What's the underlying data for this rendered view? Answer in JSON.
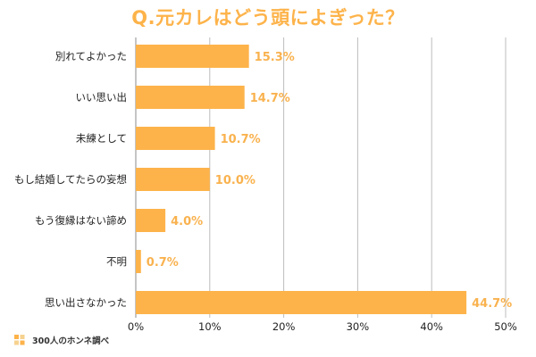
{
  "title": "Q.元カレはどう頭によぎった？",
  "source": {
    "text": "300人のホンネ調べ",
    "icon": "brand-logo-icon"
  },
  "colors": {
    "accent": "#FDB34A",
    "bar": "#FDB34A",
    "value_label": "#F9B24E",
    "grid": "#BDBDBD",
    "axis": "#9E9E9E"
  },
  "chart_data": {
    "type": "bar",
    "orientation": "horizontal",
    "title": "Q.元カレはどう頭によぎった？",
    "categories": [
      "別れてよかった",
      "いい思い出",
      "未練として",
      "もし結婚してたらの妄想",
      "もう復縁はない諦め",
      "不明",
      "思い出さなかった"
    ],
    "values": [
      15.3,
      14.7,
      10.7,
      10.0,
      4.0,
      0.7,
      44.7
    ],
    "value_labels": [
      "15.3%",
      "14.7%",
      "10.7%",
      "10.0%",
      "4.0%",
      "0.7%",
      "44.7%"
    ],
    "xlim": [
      0,
      50
    ],
    "xticks": [
      0,
      10,
      20,
      30,
      40,
      50
    ],
    "xtick_labels": [
      "0%",
      "10%",
      "20%",
      "30%",
      "40%",
      "50%"
    ],
    "xlabel": "",
    "ylabel": "",
    "grid": "vertical",
    "legend": "none"
  }
}
